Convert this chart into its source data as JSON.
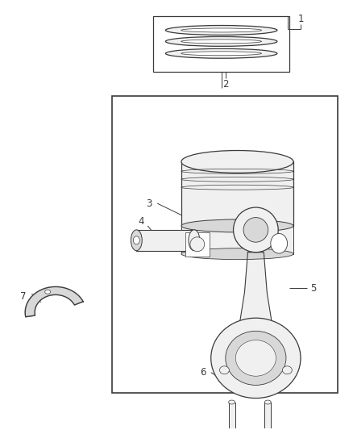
{
  "background_color": "#ffffff",
  "line_color": "#3a3a3a",
  "light_fill": "#f0f0f0",
  "mid_fill": "#d8d8d8",
  "dark_fill": "#909090",
  "label_fontsize": 8.5,
  "figsize": [
    4.38,
    5.33
  ],
  "dpi": 100
}
